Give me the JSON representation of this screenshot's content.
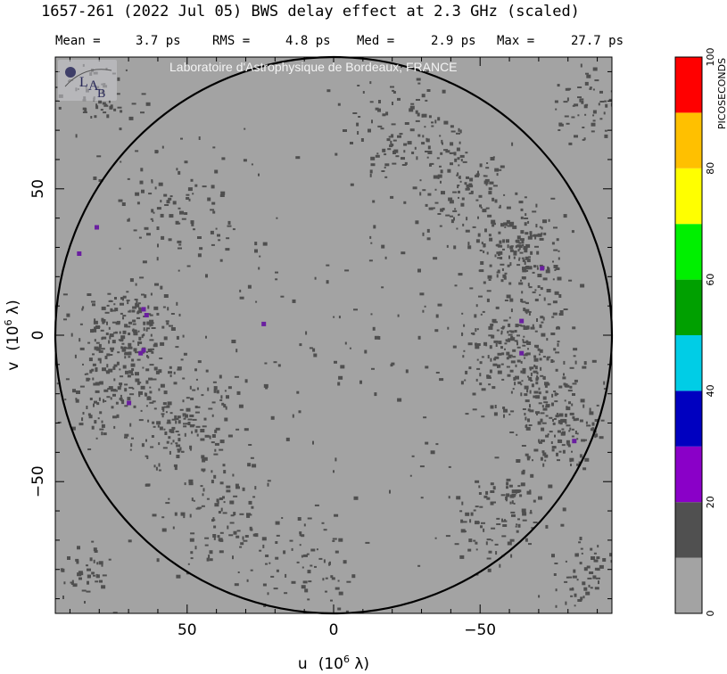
{
  "header": {
    "title": "1657-261  (2022 Jul 05)   BWS delay effect at  2.3 GHz (scaled)",
    "stats": [
      {
        "label": "Mean =",
        "value": "3.7 ps"
      },
      {
        "label": "RMS =",
        "value": "4.8 ps"
      },
      {
        "label": "Med =",
        "value": "2.9 ps"
      },
      {
        "label": "Max =",
        "value": "27.7 ps"
      }
    ]
  },
  "credit": "Laboratoire d'Astrophysique de Bordeaux, FRANCE",
  "logo": {
    "text_l": "L",
    "text_a": "A",
    "text_b": "B"
  },
  "chart_data": {
    "type": "heatmap",
    "title": "1657-261  (2022 Jul 05)   BWS delay effect at  2.3 GHz (scaled)",
    "x_axis": {
      "label_main": "u",
      "label_unit_prefix": "(10",
      "label_unit_exp": "6",
      "label_unit_suffix": " λ)",
      "range": [
        95,
        -95
      ],
      "reversed": true,
      "ticks": [
        50,
        0,
        -50
      ],
      "tick_labels": [
        "50",
        "0",
        "−50"
      ]
    },
    "y_axis": {
      "label_main": "v",
      "label_unit_prefix": "(10",
      "label_unit_exp": "6",
      "label_unit_suffix": " λ)",
      "range": [
        -95,
        95
      ],
      "ticks": [
        50,
        0,
        -50
      ],
      "tick_labels": [
        "50",
        "0",
        "−50"
      ]
    },
    "circle_radius": 95,
    "background_color": "#a3a3a3",
    "colorbar": {
      "label": "PICOSECONDS",
      "min": 0,
      "max": 100,
      "tick_values": [
        0,
        20,
        40,
        60,
        80,
        100
      ],
      "tick_labels": [
        "0",
        "20",
        "40",
        "60",
        "80",
        "100"
      ],
      "bins": [
        {
          "from": 0,
          "to": 10,
          "color": "#a3a3a3"
        },
        {
          "from": 10,
          "to": 20,
          "color": "#505050"
        },
        {
          "from": 20,
          "to": 30,
          "color": "#8a00c8"
        },
        {
          "from": 30,
          "to": 40,
          "color": "#0000c0"
        },
        {
          "from": 40,
          "to": 50,
          "color": "#00cde6"
        },
        {
          "from": 50,
          "to": 60,
          "color": "#00a000"
        },
        {
          "from": 60,
          "to": 70,
          "color": "#00f000"
        },
        {
          "from": 70,
          "to": 80,
          "color": "#ffff00"
        },
        {
          "from": 80,
          "to": 90,
          "color": "#ffc000"
        },
        {
          "from": 90,
          "to": 100,
          "color": "#ff0000"
        }
      ]
    },
    "dark_color": "#4f4f4f",
    "purple_color": "#6a1fa0",
    "purple_spots": [
      [
        81,
        37
      ],
      [
        87,
        28
      ],
      [
        65,
        9
      ],
      [
        65,
        -5
      ],
      [
        64,
        7
      ],
      [
        66,
        -6
      ],
      [
        70,
        -23
      ],
      [
        24,
        4
      ],
      [
        -64,
        5
      ],
      [
        -64,
        -6
      ],
      [
        -71,
        23
      ],
      [
        -82,
        -36
      ]
    ],
    "dark_clusters": [
      {
        "u": 55,
        "v": 45,
        "spread": 22,
        "n": 90
      },
      {
        "u": 70,
        "v": 0,
        "spread": 18,
        "n": 210
      },
      {
        "u": 78,
        "v": -20,
        "spread": 16,
        "n": 120
      },
      {
        "u": 52,
        "v": -30,
        "spread": 16,
        "n": 140
      },
      {
        "u": 40,
        "v": -62,
        "spread": 18,
        "n": 110
      },
      {
        "u": 10,
        "v": -78,
        "spread": 20,
        "n": 70
      },
      {
        "u": -25,
        "v": 70,
        "spread": 20,
        "n": 120
      },
      {
        "u": -45,
        "v": 50,
        "spread": 16,
        "n": 110
      },
      {
        "u": -62,
        "v": 30,
        "spread": 16,
        "n": 170
      },
      {
        "u": -62,
        "v": -5,
        "spread": 20,
        "n": 240
      },
      {
        "u": -75,
        "v": -30,
        "spread": 16,
        "n": 150
      },
      {
        "u": -55,
        "v": -60,
        "spread": 18,
        "n": 110
      },
      {
        "u": 82,
        "v": 80,
        "spread": 14,
        "n": 60
      },
      {
        "u": -85,
        "v": 80,
        "spread": 12,
        "n": 60
      },
      {
        "u": 85,
        "v": -80,
        "spread": 12,
        "n": 50
      },
      {
        "u": -85,
        "v": -82,
        "spread": 12,
        "n": 60
      },
      {
        "u": 0,
        "v": 0,
        "spread": 70,
        "n": 160
      }
    ]
  }
}
